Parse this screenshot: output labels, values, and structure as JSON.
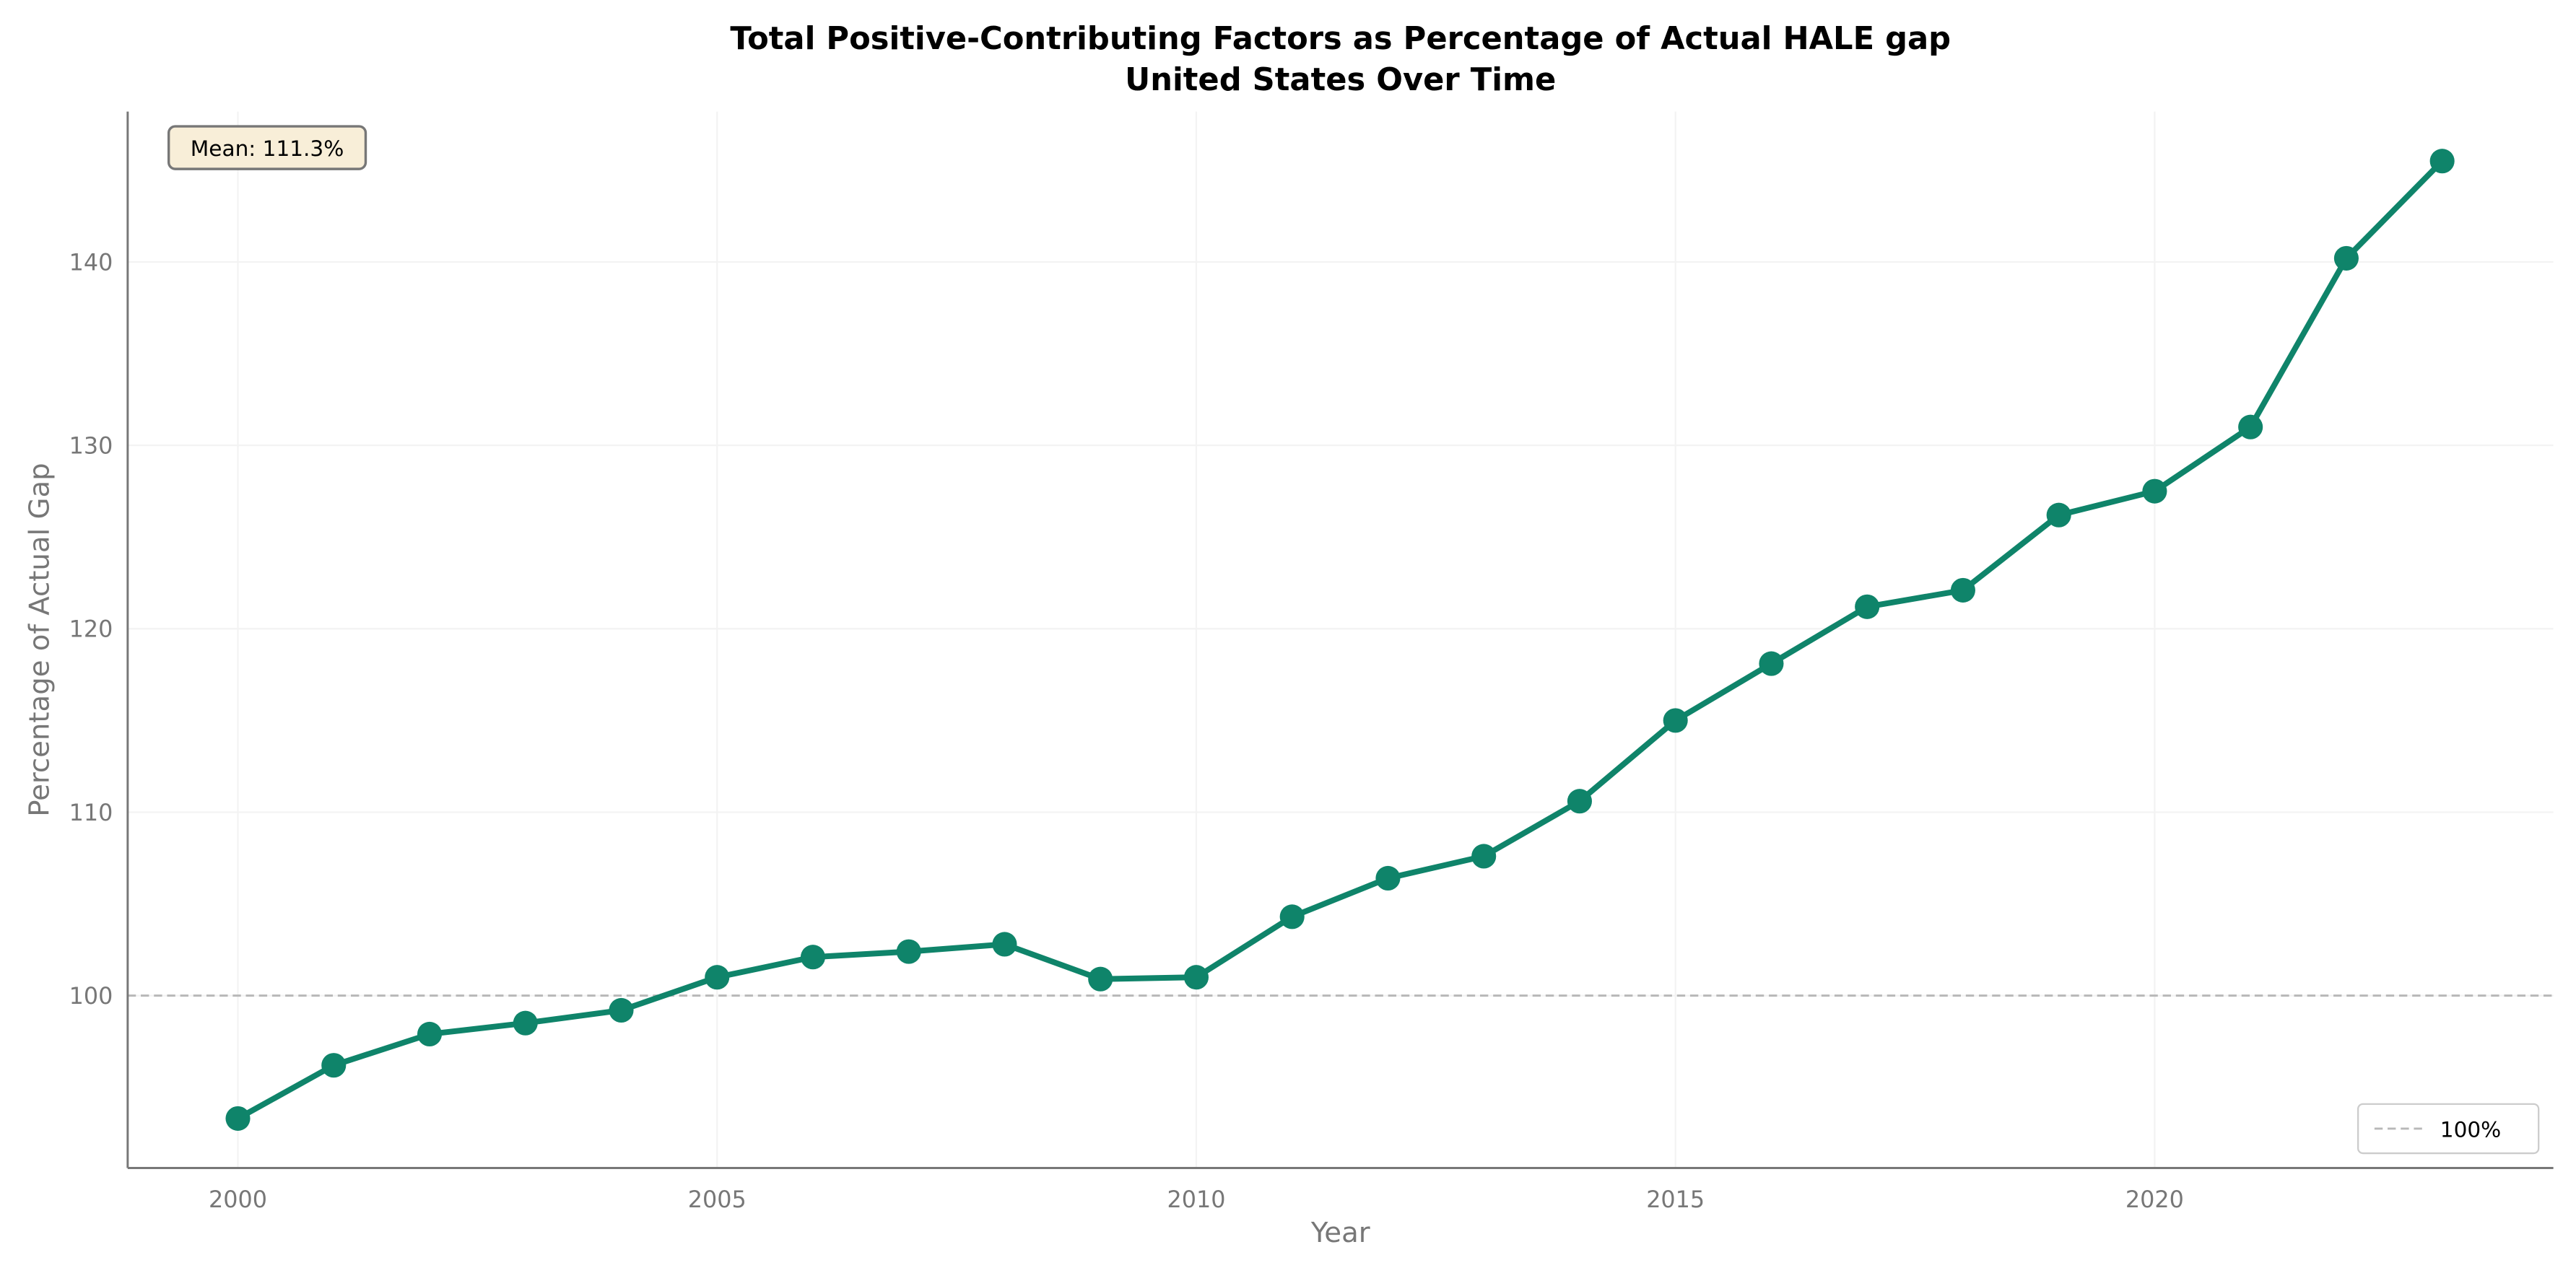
{
  "chart_data": {
    "type": "line",
    "title": "Total Positive-Contributing Factors as Percentage of Actual HALE gap",
    "subtitle": "United States Over Time",
    "xlabel": "Year",
    "ylabel": "Percentage of Actual Gap",
    "x": [
      2000,
      2001,
      2002,
      2003,
      2004,
      2005,
      2006,
      2007,
      2008,
      2009,
      2010,
      2011,
      2012,
      2013,
      2014,
      2015,
      2016,
      2017,
      2018,
      2019,
      2020,
      2021,
      2022,
      2023
    ],
    "series": [
      {
        "values": [
          93.3,
          96.2,
          97.9,
          98.5,
          99.2,
          101.0,
          102.1,
          102.4,
          102.8,
          100.9,
          101.0,
          104.3,
          106.4,
          107.6,
          110.6,
          115.0,
          118.1,
          121.2,
          122.1,
          126.2,
          127.5,
          131.0,
          140.2,
          145.5
        ],
        "color": "#0f846a"
      }
    ],
    "xlim": [
      1998.85,
      2024.16
    ],
    "ylim": [
      90.6,
      148.2
    ],
    "xticks": [
      "2000",
      "2005",
      "2010",
      "2015",
      "2020"
    ],
    "yticks": [
      "100",
      "110",
      "120",
      "130",
      "140"
    ],
    "grid": true,
    "reference_line": {
      "y": 100,
      "label": "100%",
      "color": "#b8b8b8",
      "style": "dashed"
    },
    "annotation": "Mean: 111.3%",
    "legend_position": "bottom-right"
  }
}
